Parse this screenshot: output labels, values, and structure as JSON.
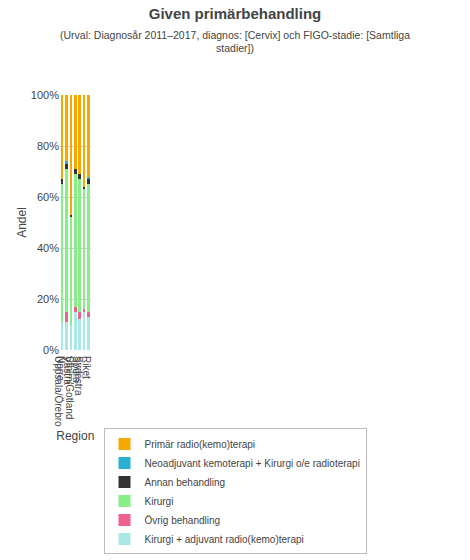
{
  "chart_data": {
    "type": "bar",
    "stacked": true,
    "title": "Given primärbehandling",
    "subtitle": "(Urval: Diagnosår 2011–2017, diagnos: [Cervix] och FIGO-stadie: [Samtliga\nstadier])",
    "xlabel": "Region",
    "ylabel": "Andel",
    "categories": [
      "Norra",
      "Uppsala/Örebro",
      "Sthlm/Gotland",
      "Västra",
      "Sydöstra",
      "Södra",
      "Riket"
    ],
    "series": [
      {
        "name": "Kirurgi + adjuvant radio(kemo)terapi",
        "color": "#aae8e8",
        "values": [
          0.11,
          0.11,
          0.1,
          0.15,
          0.12,
          0.15,
          0.13
        ]
      },
      {
        "name": "Övrig behandling",
        "color": "#f06090",
        "values": [
          0.0,
          0.04,
          0.0,
          0.02,
          0.03,
          0.01,
          0.02
        ]
      },
      {
        "name": "Kirurgi",
        "color": "#88ee88",
        "values": [
          0.54,
          0.56,
          0.42,
          0.52,
          0.52,
          0.47,
          0.5
        ]
      },
      {
        "name": "Annan behandling",
        "color": "#333333",
        "values": [
          0.02,
          0.02,
          0.01,
          0.02,
          0.02,
          0.01,
          0.02
        ]
      },
      {
        "name": "Neoadjuvant kemoterapi + Kirurgi o/e radioterapi",
        "color": "#29b0d0",
        "values": [
          0.0,
          0.01,
          0.0,
          0.0,
          0.0,
          0.0,
          0.01
        ]
      },
      {
        "name": "Primär radio(kemo)terapi",
        "color": "#f5a800",
        "values": [
          0.33,
          0.26,
          0.47,
          0.29,
          0.31,
          0.36,
          0.32
        ]
      }
    ],
    "ylim": [
      0,
      1.0
    ],
    "yticks": [
      {
        "value": 0,
        "label": "0%"
      },
      {
        "value": 0.2,
        "label": "20%"
      },
      {
        "value": 0.4,
        "label": "40%"
      },
      {
        "value": 0.6,
        "label": "60%"
      },
      {
        "value": 0.8,
        "label": "80%"
      },
      {
        "value": 1.0,
        "label": "100%"
      }
    ],
    "grid": true,
    "legend": "bottom"
  }
}
